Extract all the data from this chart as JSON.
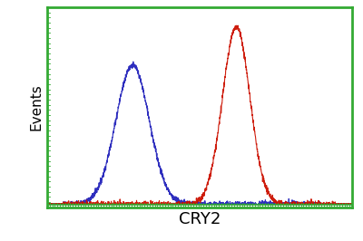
{
  "xlabel": "CRY2",
  "ylabel": "Events",
  "xlabel_fontsize": 13,
  "ylabel_fontsize": 11,
  "blue_color": "#2222bb",
  "red_color": "#cc1100",
  "green_color": "#33aa33",
  "background_color": "#ffffff",
  "blue_mean": 280,
  "blue_std": 55,
  "blue_peak": 0.73,
  "red_mean": 620,
  "red_std": 45,
  "red_peak": 0.93,
  "xlim": [
    0,
    1000
  ],
  "ylim": [
    0,
    1.05
  ],
  "noise_amplitude": 0.008,
  "baseline_level": 0.015,
  "n_points": 2000
}
